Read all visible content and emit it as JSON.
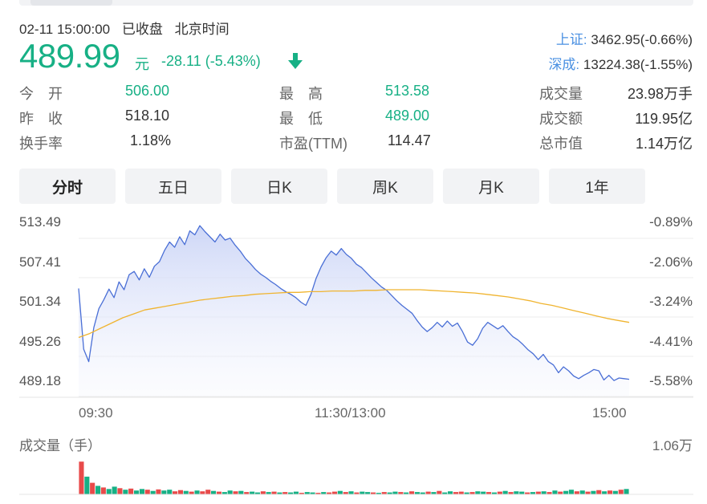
{
  "header": {
    "datetime": "02-11 15:00:00",
    "status": "已收盘",
    "timezone": "北京时间"
  },
  "quote": {
    "price": "489.99",
    "unit": "元",
    "change": "-28.11 (-5.43%)",
    "direction": "down",
    "color": "#17b085"
  },
  "indices": [
    {
      "label": "上证:",
      "value": "3462.95(-0.66%)"
    },
    {
      "label": "深成:",
      "value": "13224.38(-1.55%)"
    }
  ],
  "stats": [
    {
      "label": "今　开",
      "value": "506.00",
      "color": "green"
    },
    {
      "label": "最　高",
      "value": "513.58",
      "color": "green"
    },
    {
      "label": "成交量",
      "value": "23.98万手",
      "color": "normal"
    },
    {
      "label": "昨　收",
      "value": "518.10",
      "color": "normal"
    },
    {
      "label": "最　低",
      "value": "489.00",
      "color": "green"
    },
    {
      "label": "成交额",
      "value": "119.95亿",
      "color": "normal"
    },
    {
      "label": "换手率",
      "value": "1.18%",
      "color": "normal"
    },
    {
      "label": "市盈(TTM)",
      "value": "114.47",
      "color": "normal"
    },
    {
      "label": "总市值",
      "value": "1.14万亿",
      "color": "normal"
    }
  ],
  "tabs": [
    {
      "label": "分时",
      "active": true
    },
    {
      "label": "五日",
      "active": false
    },
    {
      "label": "日K",
      "active": false
    },
    {
      "label": "周K",
      "active": false
    },
    {
      "label": "月K",
      "active": false
    },
    {
      "label": "1年",
      "active": false
    }
  ],
  "chart_data": {
    "type": "line",
    "y_ticks": [
      "513.49",
      "507.41",
      "501.34",
      "495.26",
      "489.18"
    ],
    "pct_ticks": [
      "-0.89%",
      "-2.06%",
      "-3.24%",
      "-4.41%",
      "-5.58%"
    ],
    "x_ticks": [
      "09:30",
      "11:30/13:00",
      "15:00"
    ],
    "ylim": [
      489.18,
      513.49
    ],
    "points_per_day": 240,
    "series": [
      {
        "color": "#4a6fd6",
        "values": [
          503.5,
          494.2,
          492.3,
          497.5,
          500.4,
          501.8,
          503.4,
          502.1,
          504.5,
          503.3,
          505.6,
          506.1,
          504.8,
          506.5,
          505.2,
          506.9,
          507.6,
          509.3,
          510.6,
          509.8,
          511.4,
          510.2,
          512.3,
          511.7,
          513.1,
          512.2,
          511.4,
          510.6,
          511.8,
          510.9,
          511.2,
          510.1,
          509.2,
          508.1,
          507.3,
          506.4,
          505.7,
          505.2,
          504.6,
          504.1,
          503.5,
          503.0,
          502.6,
          502.1,
          501.4,
          500.9,
          502.6,
          505.0,
          506.8,
          508.2,
          509.2,
          508.6,
          509.6,
          508.7,
          508.1,
          507.2,
          506.7,
          505.9,
          505.1,
          504.4,
          503.7,
          503.2,
          502.4,
          501.6,
          500.9,
          500.3,
          499.7,
          498.6,
          497.6,
          496.9,
          497.5,
          498.3,
          497.6,
          498.5,
          497.7,
          498.2,
          496.9,
          495.3,
          494.8,
          495.8,
          497.4,
          498.3,
          497.8,
          497.3,
          497.8,
          496.9,
          496.1,
          495.6,
          494.9,
          494.1,
          493.5,
          492.6,
          493.4,
          492.3,
          491.8,
          490.6,
          491.5,
          490.9,
          490.1,
          489.7,
          490.2,
          490.6,
          491.1,
          490.9,
          489.5,
          490.2,
          489.4,
          489.8,
          489.7,
          489.6
        ],
        "fill": "#e2e7fb"
      },
      {
        "color": "#f0b42f",
        "values": [
          496.0,
          496.6,
          497.4,
          498.2,
          499.0,
          499.6,
          500.2,
          500.5,
          500.8,
          501.1,
          501.4,
          501.7,
          501.9,
          502.1,
          502.3,
          502.4,
          502.6,
          502.7,
          502.8,
          502.9,
          502.9,
          503.0,
          503.0,
          503.1,
          503.1,
          503.1,
          503.2,
          503.2,
          503.3,
          503.3,
          503.3,
          503.3,
          503.2,
          503.1,
          503.0,
          502.9,
          502.8,
          502.6,
          502.4,
          502.2,
          501.9,
          501.6,
          501.2,
          500.9,
          500.5,
          500.1,
          499.7,
          499.3,
          498.9,
          498.6,
          498.3
        ]
      }
    ]
  },
  "volume": {
    "title": "成交量（手）",
    "max_label": "1.06万",
    "up_color": "#e84a4a",
    "down_color": "#17b085",
    "bars": [
      0.85,
      0.46,
      0.3,
      0.22,
      0.18,
      0.14,
      0.2,
      0.16,
      0.12,
      0.15,
      0.1,
      0.14,
      0.12,
      0.09,
      0.13,
      0.1,
      0.12,
      0.08,
      0.11,
      0.09,
      0.07,
      0.1,
      0.08,
      0.12,
      0.09,
      0.07,
      0.06,
      0.1,
      0.08,
      0.09,
      0.06,
      0.07,
      0.05,
      0.08,
      0.06,
      0.07,
      0.05,
      0.06,
      0.05,
      0.07,
      0.04,
      0.06,
      0.05,
      0.04,
      0.06,
      0.05,
      0.07,
      0.09,
      0.06,
      0.08,
      0.05,
      0.07,
      0.06,
      0.05,
      0.04,
      0.06,
      0.05,
      0.07,
      0.06,
      0.05,
      0.08,
      0.06,
      0.05,
      0.07,
      0.06,
      0.09,
      0.05,
      0.08,
      0.06,
      0.07,
      0.05,
      0.06,
      0.08,
      0.07,
      0.06,
      0.05,
      0.07,
      0.09,
      0.06,
      0.08,
      0.07,
      0.05,
      0.06,
      0.07,
      0.08,
      0.06,
      0.1,
      0.07,
      0.09,
      0.12,
      0.08,
      0.1,
      0.07,
      0.09,
      0.11,
      0.08,
      0.1,
      0.09,
      0.12,
      0.14
    ],
    "dirs": [
      "u",
      "d",
      "u",
      "d",
      "u",
      "d",
      "d",
      "u",
      "d",
      "u",
      "d",
      "d",
      "u",
      "d",
      "u",
      "d",
      "d",
      "u",
      "u",
      "d",
      "u",
      "d",
      "u",
      "u",
      "d",
      "u",
      "d",
      "d",
      "u",
      "d",
      "u",
      "d",
      "d",
      "u",
      "d",
      "u",
      "d",
      "u",
      "d",
      "d",
      "u",
      "d",
      "d",
      "u",
      "d",
      "u",
      "u",
      "d",
      "u",
      "d",
      "u",
      "d",
      "d",
      "u",
      "d",
      "u",
      "d",
      "d",
      "u",
      "d",
      "u",
      "d",
      "d",
      "u",
      "d",
      "u",
      "d",
      "d",
      "u",
      "u",
      "d",
      "u",
      "d",
      "d",
      "u",
      "d",
      "u",
      "d",
      "u",
      "d",
      "d",
      "u",
      "d",
      "u",
      "d",
      "u",
      "d",
      "u",
      "d",
      "d",
      "u",
      "d",
      "u",
      "d",
      "u",
      "d",
      "u",
      "d",
      "u",
      "d"
    ]
  }
}
